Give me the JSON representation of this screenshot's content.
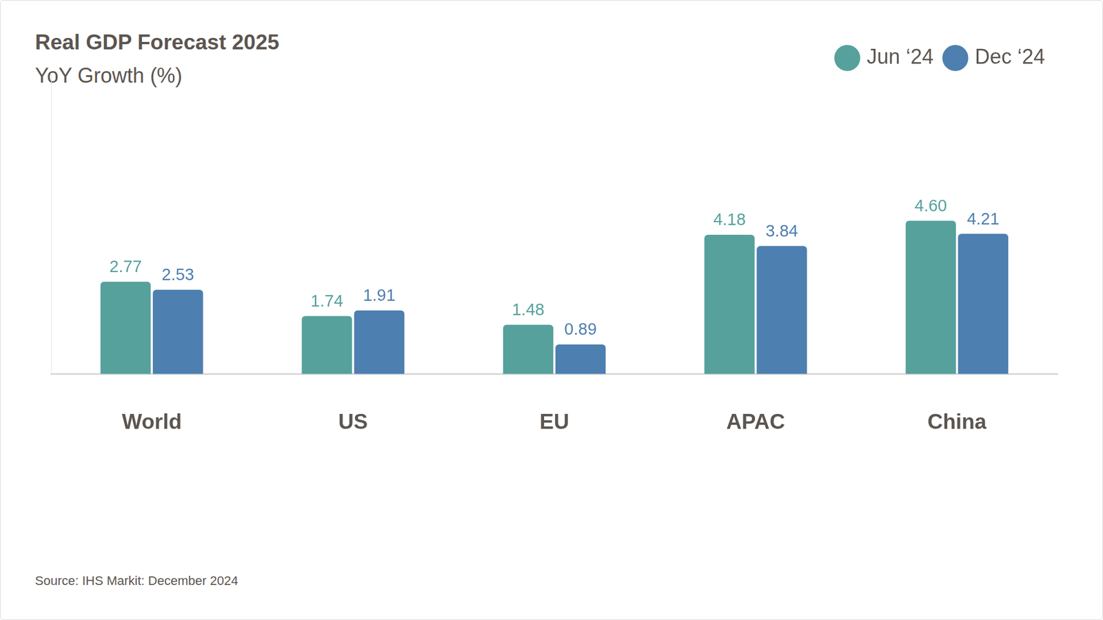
{
  "chart_data": {
    "type": "bar",
    "title": "Real GDP Forecast 2025",
    "subtitle": "YoY Growth (%)",
    "source": "Source: IHS Markit: December 2024",
    "categories": [
      "World",
      "US",
      "EU",
      "APAC",
      "China"
    ],
    "series": [
      {
        "name": "Jun ‘24",
        "color": "#56a19c",
        "values": [
          2.77,
          1.74,
          1.48,
          4.18,
          4.6
        ],
        "value_labels": [
          "2.77",
          "1.74",
          "1.48",
          "4.18",
          "4.60"
        ]
      },
      {
        "name": "Dec ‘24",
        "color": "#4d7fb0",
        "values": [
          2.53,
          1.91,
          0.89,
          3.84,
          4.21
        ],
        "value_labels": [
          "2.53",
          "1.91",
          "0.89",
          "3.84",
          "4.21"
        ]
      }
    ],
    "ylim": [
      0,
      9
    ],
    "grid": false,
    "legend": "top-right",
    "data_labels": true,
    "tick_labels": "x"
  }
}
